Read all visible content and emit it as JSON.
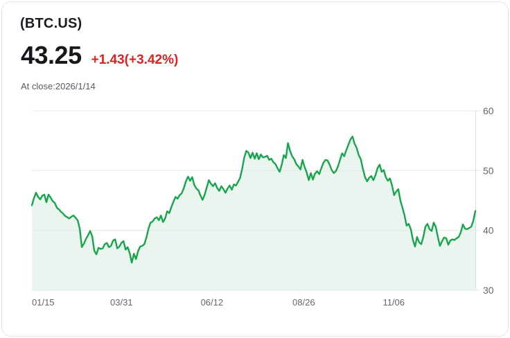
{
  "header": {
    "symbol": "(BTC.US)",
    "price": "43.25",
    "change": "+1.43(+3.42%)",
    "as_of": "At close:2026/1/14"
  },
  "colors": {
    "line": "#17a54b",
    "area_fill": "#e9f5ee",
    "grid": "#e4e6e8",
    "axis_line": "#d9dcdf",
    "axis_text": "#63686e",
    "change_red": "#e02020"
  },
  "chart_data": {
    "type": "area",
    "title": "(BTC.US) one-year price history",
    "ylim": [
      30,
      60
    ],
    "y_ticks": [
      60,
      50,
      40,
      30
    ],
    "x_ticks": [
      {
        "label": "01/15",
        "pos": 0.0
      },
      {
        "label": "03/31",
        "pos": 0.202
      },
      {
        "label": "06/12",
        "pos": 0.406
      },
      {
        "label": "08/26",
        "pos": 0.613
      },
      {
        "label": "11/06",
        "pos": 0.816
      }
    ],
    "grid": true,
    "legend": false,
    "values": [
      44.2,
      45.4,
      46.3,
      45.6,
      45.2,
      45.8,
      46.0,
      44.7,
      46.0,
      45.5,
      44.9,
      44.6,
      43.8,
      43.5,
      43.1,
      42.8,
      42.4,
      42.2,
      42.0,
      42.3,
      42.5,
      42.1,
      41.7,
      40.3,
      37.2,
      37.8,
      38.6,
      39.2,
      39.9,
      39.0,
      36.6,
      36.0,
      37.1,
      36.9,
      37.0,
      37.7,
      37.9,
      37.2,
      37.4,
      38.3,
      38.5,
      37.0,
      37.3,
      37.9,
      38.2,
      36.8,
      37.2,
      36.2,
      34.6,
      36.1,
      35.2,
      36.5,
      37.3,
      37.4,
      37.7,
      38.8,
      40.3,
      41.3,
      41.5,
      42.0,
      42.2,
      41.7,
      42.5,
      41.4,
      42.0,
      43.2,
      42.9,
      43.9,
      44.8,
      45.6,
      45.3,
      45.9,
      46.2,
      47.1,
      48.2,
      49.0,
      48.3,
      48.9,
      47.6,
      47.0,
      46.7,
      45.8,
      45.1,
      46.0,
      47.2,
      48.4,
      47.8,
      47.4,
      47.9,
      47.1,
      46.6,
      47.4,
      46.9,
      46.3,
      47.0,
      47.5,
      46.8,
      47.7,
      47.5,
      48.1,
      48.8,
      50.3,
      52.2,
      53.3,
      53.0,
      52.1,
      53.0,
      52.0,
      52.9,
      51.9,
      52.7,
      52.2,
      52.3,
      52.5,
      51.8,
      52.0,
      51.4,
      51.1,
      50.4,
      49.8,
      51.0,
      52.6,
      52.1,
      54.6,
      53.3,
      52.4,
      51.9,
      51.1,
      50.7,
      50.2,
      51.8,
      50.6,
      49.7,
      48.4,
      49.6,
      48.5,
      49.5,
      49.9,
      49.4,
      50.4,
      51.3,
      51.8,
      51.7,
      51.0,
      50.1,
      49.6,
      49.9,
      50.7,
      51.8,
      52.9,
      52.4,
      53.4,
      54.3,
      55.2,
      55.7,
      54.5,
      53.8,
      52.6,
      51.9,
      50.3,
      48.9,
      48.2,
      48.8,
      49.1,
      48.4,
      49.2,
      50.4,
      51.0,
      49.8,
      50.1,
      48.9,
      48.3,
      48.7,
      47.5,
      45.9,
      46.5,
      46.9,
      45.0,
      43.8,
      42.5,
      40.8,
      41.1,
      40.2,
      38.4,
      37.3,
      38.9,
      38.0,
      37.7,
      38.9,
      40.6,
      41.1,
      40.2,
      39.9,
      41.3,
      40.6,
      38.9,
      37.4,
      38.2,
      38.8,
      38.7,
      37.6,
      38.3,
      38.5,
      38.4,
      38.7,
      38.9,
      39.7,
      41.0,
      40.3,
      40.2,
      40.4,
      40.6,
      41.6,
      43.25
    ]
  }
}
